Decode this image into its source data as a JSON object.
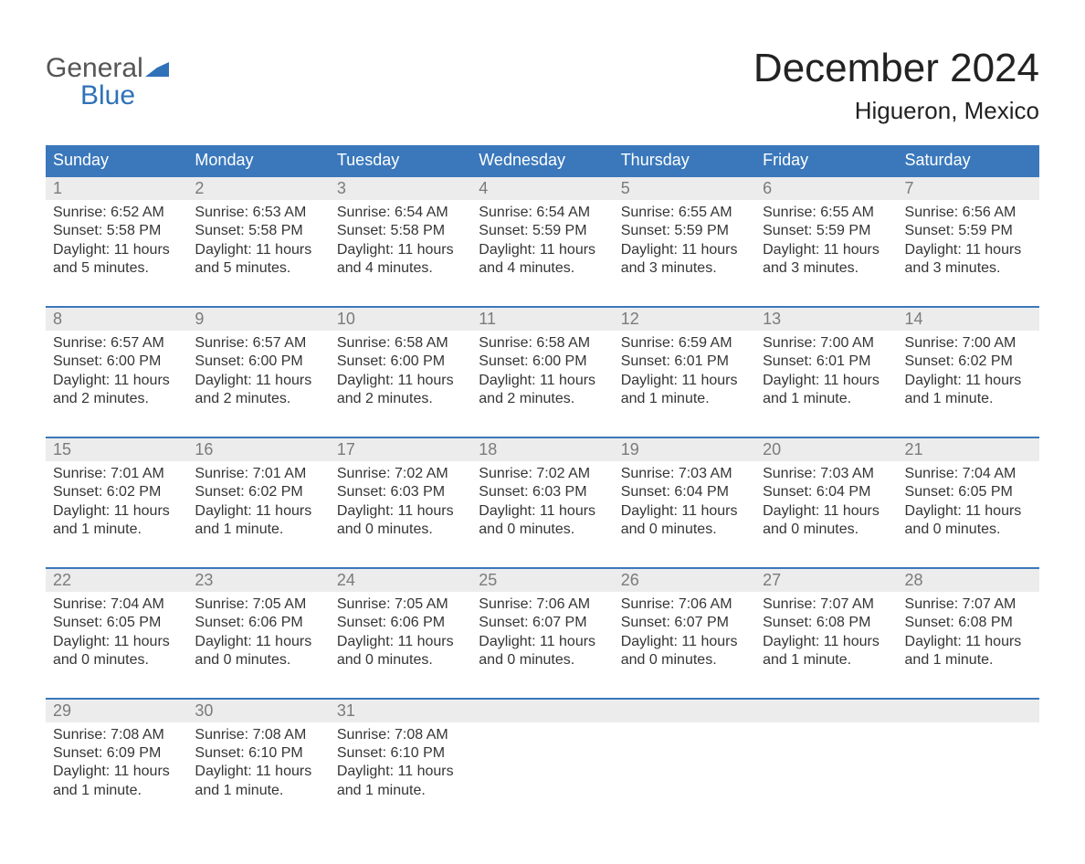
{
  "logo": {
    "line1": "General",
    "line2": "Blue",
    "mark_color": "#2f72b8"
  },
  "title": "December 2024",
  "location": "Higueron, Mexico",
  "colors": {
    "header_bg": "#3a78bb",
    "header_text": "#ffffff",
    "daynum_bg": "#ececec",
    "daynum_text": "#7b7b7b",
    "week_border": "#3a78bb",
    "body_text": "#353535",
    "page_bg": "#ffffff"
  },
  "typography": {
    "title_fontsize": 44,
    "location_fontsize": 26,
    "dow_fontsize": 18,
    "daynum_fontsize": 18,
    "cell_fontsize": 16,
    "font_family": "Arial"
  },
  "days_of_week": [
    "Sunday",
    "Monday",
    "Tuesday",
    "Wednesday",
    "Thursday",
    "Friday",
    "Saturday"
  ],
  "weeks": [
    [
      {
        "n": "1",
        "sunrise": "Sunrise: 6:52 AM",
        "sunset": "Sunset: 5:58 PM",
        "day1": "Daylight: 11 hours",
        "day2": "and 5 minutes."
      },
      {
        "n": "2",
        "sunrise": "Sunrise: 6:53 AM",
        "sunset": "Sunset: 5:58 PM",
        "day1": "Daylight: 11 hours",
        "day2": "and 5 minutes."
      },
      {
        "n": "3",
        "sunrise": "Sunrise: 6:54 AM",
        "sunset": "Sunset: 5:58 PM",
        "day1": "Daylight: 11 hours",
        "day2": "and 4 minutes."
      },
      {
        "n": "4",
        "sunrise": "Sunrise: 6:54 AM",
        "sunset": "Sunset: 5:59 PM",
        "day1": "Daylight: 11 hours",
        "day2": "and 4 minutes."
      },
      {
        "n": "5",
        "sunrise": "Sunrise: 6:55 AM",
        "sunset": "Sunset: 5:59 PM",
        "day1": "Daylight: 11 hours",
        "day2": "and 3 minutes."
      },
      {
        "n": "6",
        "sunrise": "Sunrise: 6:55 AM",
        "sunset": "Sunset: 5:59 PM",
        "day1": "Daylight: 11 hours",
        "day2": "and 3 minutes."
      },
      {
        "n": "7",
        "sunrise": "Sunrise: 6:56 AM",
        "sunset": "Sunset: 5:59 PM",
        "day1": "Daylight: 11 hours",
        "day2": "and 3 minutes."
      }
    ],
    [
      {
        "n": "8",
        "sunrise": "Sunrise: 6:57 AM",
        "sunset": "Sunset: 6:00 PM",
        "day1": "Daylight: 11 hours",
        "day2": "and 2 minutes."
      },
      {
        "n": "9",
        "sunrise": "Sunrise: 6:57 AM",
        "sunset": "Sunset: 6:00 PM",
        "day1": "Daylight: 11 hours",
        "day2": "and 2 minutes."
      },
      {
        "n": "10",
        "sunrise": "Sunrise: 6:58 AM",
        "sunset": "Sunset: 6:00 PM",
        "day1": "Daylight: 11 hours",
        "day2": "and 2 minutes."
      },
      {
        "n": "11",
        "sunrise": "Sunrise: 6:58 AM",
        "sunset": "Sunset: 6:00 PM",
        "day1": "Daylight: 11 hours",
        "day2": "and 2 minutes."
      },
      {
        "n": "12",
        "sunrise": "Sunrise: 6:59 AM",
        "sunset": "Sunset: 6:01 PM",
        "day1": "Daylight: 11 hours",
        "day2": "and 1 minute."
      },
      {
        "n": "13",
        "sunrise": "Sunrise: 7:00 AM",
        "sunset": "Sunset: 6:01 PM",
        "day1": "Daylight: 11 hours",
        "day2": "and 1 minute."
      },
      {
        "n": "14",
        "sunrise": "Sunrise: 7:00 AM",
        "sunset": "Sunset: 6:02 PM",
        "day1": "Daylight: 11 hours",
        "day2": "and 1 minute."
      }
    ],
    [
      {
        "n": "15",
        "sunrise": "Sunrise: 7:01 AM",
        "sunset": "Sunset: 6:02 PM",
        "day1": "Daylight: 11 hours",
        "day2": "and 1 minute."
      },
      {
        "n": "16",
        "sunrise": "Sunrise: 7:01 AM",
        "sunset": "Sunset: 6:02 PM",
        "day1": "Daylight: 11 hours",
        "day2": "and 1 minute."
      },
      {
        "n": "17",
        "sunrise": "Sunrise: 7:02 AM",
        "sunset": "Sunset: 6:03 PM",
        "day1": "Daylight: 11 hours",
        "day2": "and 0 minutes."
      },
      {
        "n": "18",
        "sunrise": "Sunrise: 7:02 AM",
        "sunset": "Sunset: 6:03 PM",
        "day1": "Daylight: 11 hours",
        "day2": "and 0 minutes."
      },
      {
        "n": "19",
        "sunrise": "Sunrise: 7:03 AM",
        "sunset": "Sunset: 6:04 PM",
        "day1": "Daylight: 11 hours",
        "day2": "and 0 minutes."
      },
      {
        "n": "20",
        "sunrise": "Sunrise: 7:03 AM",
        "sunset": "Sunset: 6:04 PM",
        "day1": "Daylight: 11 hours",
        "day2": "and 0 minutes."
      },
      {
        "n": "21",
        "sunrise": "Sunrise: 7:04 AM",
        "sunset": "Sunset: 6:05 PM",
        "day1": "Daylight: 11 hours",
        "day2": "and 0 minutes."
      }
    ],
    [
      {
        "n": "22",
        "sunrise": "Sunrise: 7:04 AM",
        "sunset": "Sunset: 6:05 PM",
        "day1": "Daylight: 11 hours",
        "day2": "and 0 minutes."
      },
      {
        "n": "23",
        "sunrise": "Sunrise: 7:05 AM",
        "sunset": "Sunset: 6:06 PM",
        "day1": "Daylight: 11 hours",
        "day2": "and 0 minutes."
      },
      {
        "n": "24",
        "sunrise": "Sunrise: 7:05 AM",
        "sunset": "Sunset: 6:06 PM",
        "day1": "Daylight: 11 hours",
        "day2": "and 0 minutes."
      },
      {
        "n": "25",
        "sunrise": "Sunrise: 7:06 AM",
        "sunset": "Sunset: 6:07 PM",
        "day1": "Daylight: 11 hours",
        "day2": "and 0 minutes."
      },
      {
        "n": "26",
        "sunrise": "Sunrise: 7:06 AM",
        "sunset": "Sunset: 6:07 PM",
        "day1": "Daylight: 11 hours",
        "day2": "and 0 minutes."
      },
      {
        "n": "27",
        "sunrise": "Sunrise: 7:07 AM",
        "sunset": "Sunset: 6:08 PM",
        "day1": "Daylight: 11 hours",
        "day2": "and 1 minute."
      },
      {
        "n": "28",
        "sunrise": "Sunrise: 7:07 AM",
        "sunset": "Sunset: 6:08 PM",
        "day1": "Daylight: 11 hours",
        "day2": "and 1 minute."
      }
    ],
    [
      {
        "n": "29",
        "sunrise": "Sunrise: 7:08 AM",
        "sunset": "Sunset: 6:09 PM",
        "day1": "Daylight: 11 hours",
        "day2": "and 1 minute."
      },
      {
        "n": "30",
        "sunrise": "Sunrise: 7:08 AM",
        "sunset": "Sunset: 6:10 PM",
        "day1": "Daylight: 11 hours",
        "day2": "and 1 minute."
      },
      {
        "n": "31",
        "sunrise": "Sunrise: 7:08 AM",
        "sunset": "Sunset: 6:10 PM",
        "day1": "Daylight: 11 hours",
        "day2": "and 1 minute."
      },
      {
        "n": "",
        "sunrise": "",
        "sunset": "",
        "day1": "",
        "day2": ""
      },
      {
        "n": "",
        "sunrise": "",
        "sunset": "",
        "day1": "",
        "day2": ""
      },
      {
        "n": "",
        "sunrise": "",
        "sunset": "",
        "day1": "",
        "day2": ""
      },
      {
        "n": "",
        "sunrise": "",
        "sunset": "",
        "day1": "",
        "day2": ""
      }
    ]
  ]
}
